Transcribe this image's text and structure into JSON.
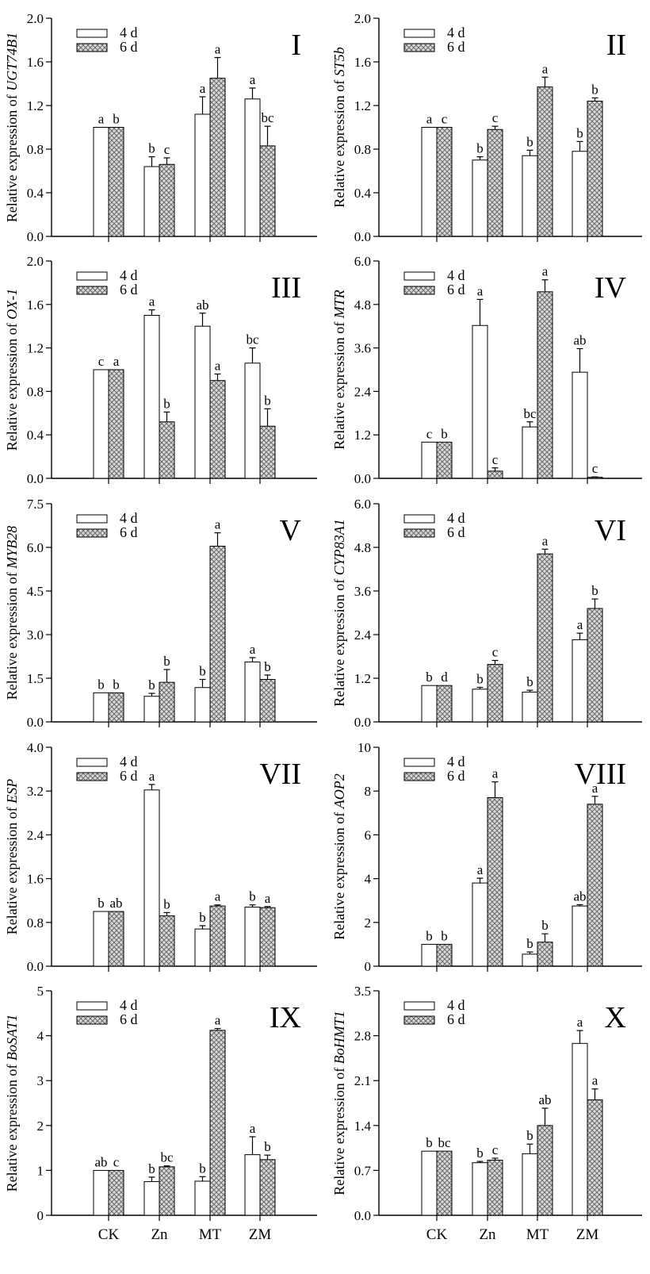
{
  "legend": [
    "4 d",
    "6 d"
  ],
  "colors": {
    "bar_4d": "#ffffff",
    "bar_6d_fg": "#6e6e6e",
    "bar_6d_bg": "#d9d9d9",
    "axis": "#000000"
  },
  "chart_data": [
    {
      "type": "bar",
      "panel": "I",
      "ylabel_prefix": "Relative expression of ",
      "gene": "UGT74B1",
      "categories": [
        "CK",
        "Zn",
        "MT",
        "ZM"
      ],
      "ylim": [
        0,
        2.0
      ],
      "yticks": [
        "0.0",
        "0.4",
        "0.8",
        "1.2",
        "1.6",
        "2.0"
      ],
      "series": [
        {
          "name": "4 d",
          "values": [
            1.0,
            0.64,
            1.12,
            1.26
          ],
          "errors": [
            0,
            0.09,
            0.16,
            0.1
          ],
          "letters": [
            "a",
            "b",
            "a",
            "a"
          ]
        },
        {
          "name": "6 d",
          "values": [
            1.0,
            0.66,
            1.45,
            0.83
          ],
          "errors": [
            0,
            0.06,
            0.19,
            0.18
          ],
          "letters": [
            "b",
            "c",
            "a",
            "bc"
          ]
        }
      ]
    },
    {
      "type": "bar",
      "panel": "II",
      "ylabel_prefix": "Relative expression of ",
      "gene": "ST5b",
      "categories": [
        "CK",
        "Zn",
        "MT",
        "ZM"
      ],
      "ylim": [
        0,
        2.0
      ],
      "yticks": [
        "0.0",
        "0.4",
        "0.8",
        "1.2",
        "1.6",
        "2.0"
      ],
      "series": [
        {
          "name": "4 d",
          "values": [
            1.0,
            0.7,
            0.74,
            0.78
          ],
          "errors": [
            0,
            0.03,
            0.05,
            0.09
          ],
          "letters": [
            "a",
            "b",
            "b",
            "b"
          ]
        },
        {
          "name": "6 d",
          "values": [
            1.0,
            0.98,
            1.37,
            1.24
          ],
          "errors": [
            0,
            0.03,
            0.09,
            0.03
          ],
          "letters": [
            "c",
            "c",
            "a",
            "b"
          ]
        }
      ]
    },
    {
      "type": "bar",
      "panel": "III",
      "ylabel_prefix": "Relative expression of ",
      "gene": "OX-1",
      "categories": [
        "CK",
        "Zn",
        "MT",
        "ZM"
      ],
      "ylim": [
        0,
        2.0
      ],
      "yticks": [
        "0.0",
        "0.4",
        "0.8",
        "1.2",
        "1.6",
        "2.0"
      ],
      "series": [
        {
          "name": "4 d",
          "values": [
            1.0,
            1.5,
            1.4,
            1.06
          ],
          "errors": [
            0,
            0.05,
            0.12,
            0.14
          ],
          "letters": [
            "c",
            "a",
            "ab",
            "bc"
          ]
        },
        {
          "name": "6 d",
          "values": [
            1.0,
            0.52,
            0.9,
            0.48
          ],
          "errors": [
            0,
            0.09,
            0.06,
            0.16
          ],
          "letters": [
            "a",
            "b",
            "a",
            "b"
          ]
        }
      ]
    },
    {
      "type": "bar",
      "panel": "IV",
      "ylabel_prefix": "Relative expression of ",
      "gene": "MTR",
      "categories": [
        "CK",
        "Zn",
        "MT",
        "ZM"
      ],
      "ylim": [
        0,
        6.0
      ],
      "yticks": [
        "0.0",
        "1.2",
        "2.4",
        "3.6",
        "4.8",
        "6.0"
      ],
      "series": [
        {
          "name": "4 d",
          "values": [
            1.0,
            4.22,
            1.42,
            2.93
          ],
          "errors": [
            0,
            0.72,
            0.14,
            0.65
          ],
          "letters": [
            "c",
            "a",
            "bc",
            "ab"
          ]
        },
        {
          "name": "6 d",
          "values": [
            1.0,
            0.2,
            5.15,
            0.03
          ],
          "errors": [
            0,
            0.09,
            0.33,
            0.01
          ],
          "letters": [
            "b",
            "c",
            "a",
            "c"
          ]
        }
      ]
    },
    {
      "type": "bar",
      "panel": "V",
      "ylabel_prefix": "Relative expression of ",
      "gene": "MYB28",
      "categories": [
        "CK",
        "Zn",
        "MT",
        "ZM"
      ],
      "ylim": [
        0,
        7.5
      ],
      "yticks": [
        "0.0",
        "1.5",
        "3.0",
        "4.5",
        "6.0",
        "7.5"
      ],
      "series": [
        {
          "name": "4 d",
          "values": [
            1.0,
            0.88,
            1.18,
            2.06
          ],
          "errors": [
            0,
            0.1,
            0.28,
            0.15
          ],
          "letters": [
            "b",
            "b",
            "b",
            "a"
          ]
        },
        {
          "name": "6 d",
          "values": [
            1.0,
            1.36,
            6.04,
            1.46
          ],
          "errors": [
            0,
            0.44,
            0.46,
            0.15
          ],
          "letters": [
            "b",
            "b",
            "a",
            "b"
          ]
        }
      ]
    },
    {
      "type": "bar",
      "panel": "VI",
      "ylabel_prefix": "Relative expression of ",
      "gene": "CYP83A1",
      "categories": [
        "CK",
        "Zn",
        "MT",
        "ZM"
      ],
      "ylim": [
        0,
        6.0
      ],
      "yticks": [
        "0.0",
        "1.2",
        "2.4",
        "3.6",
        "4.8",
        "6.0"
      ],
      "series": [
        {
          "name": "4 d",
          "values": [
            1.0,
            0.9,
            0.82,
            2.26
          ],
          "errors": [
            0,
            0.05,
            0.05,
            0.18
          ],
          "letters": [
            "b",
            "b",
            "b",
            "a"
          ]
        },
        {
          "name": "6 d",
          "values": [
            1.0,
            1.58,
            4.62,
            3.12
          ],
          "errors": [
            0,
            0.11,
            0.13,
            0.26
          ],
          "letters": [
            "d",
            "c",
            "a",
            "b"
          ]
        }
      ]
    },
    {
      "type": "bar",
      "panel": "VII",
      "ylabel_prefix": "Relative expression of ",
      "gene": "ESP",
      "categories": [
        "CK",
        "Zn",
        "MT",
        "ZM"
      ],
      "ylim": [
        0,
        4.0
      ],
      "yticks": [
        "0.0",
        "0.8",
        "1.6",
        "2.4",
        "3.2",
        "4.0"
      ],
      "series": [
        {
          "name": "4 d",
          "values": [
            1.0,
            3.22,
            0.68,
            1.08
          ],
          "errors": [
            0,
            0.1,
            0.06,
            0.04
          ],
          "letters": [
            "b",
            "a",
            "b",
            "b"
          ]
        },
        {
          "name": "6 d",
          "values": [
            1.0,
            0.92,
            1.1,
            1.07
          ],
          "errors": [
            0,
            0.06,
            0.02,
            0.02
          ],
          "letters": [
            "ab",
            "b",
            "a",
            "a"
          ]
        }
      ]
    },
    {
      "type": "bar",
      "panel": "VIII",
      "ylabel_prefix": "Relative expression of ",
      "gene": "AOP2",
      "categories": [
        "CK",
        "Zn",
        "MT",
        "ZM"
      ],
      "ylim": [
        0,
        10
      ],
      "yticks": [
        "0",
        "2",
        "4",
        "6",
        "8",
        "10"
      ],
      "series": [
        {
          "name": "4 d",
          "values": [
            1.0,
            3.8,
            0.55,
            2.75
          ],
          "errors": [
            0,
            0.22,
            0.1,
            0.06
          ],
          "letters": [
            "b",
            "a",
            "b",
            "ab"
          ]
        },
        {
          "name": "6 d",
          "values": [
            1.0,
            7.7,
            1.1,
            7.4
          ],
          "errors": [
            0,
            0.72,
            0.38,
            0.36
          ],
          "letters": [
            "b",
            "a",
            "b",
            "a"
          ]
        }
      ]
    },
    {
      "type": "bar",
      "panel": "IX",
      "ylabel_prefix": "Relative expression of ",
      "gene": "BoSAT1",
      "categories": [
        "CK",
        "Zn",
        "MT",
        "ZM"
      ],
      "ylim": [
        0,
        5
      ],
      "yticks": [
        "0",
        "1",
        "2",
        "3",
        "4",
        "5"
      ],
      "series": [
        {
          "name": "4 d",
          "values": [
            1.0,
            0.75,
            0.76,
            1.35
          ],
          "errors": [
            0,
            0.1,
            0.1,
            0.4
          ],
          "letters": [
            "ab",
            "b",
            "b",
            "a"
          ]
        },
        {
          "name": "6 d",
          "values": [
            1.0,
            1.08,
            4.12,
            1.24
          ],
          "errors": [
            0,
            0.02,
            0.04,
            0.1
          ],
          "letters": [
            "c",
            "bc",
            "a",
            "b"
          ]
        }
      ]
    },
    {
      "type": "bar",
      "panel": "X",
      "ylabel_prefix": "Relative expression of ",
      "gene": "BoHMT1",
      "categories": [
        "CK",
        "Zn",
        "MT",
        "ZM"
      ],
      "ylim": [
        0,
        3.5
      ],
      "yticks": [
        "0.0",
        "0.7",
        "1.4",
        "2.1",
        "2.8",
        "3.5"
      ],
      "series": [
        {
          "name": "4 d",
          "values": [
            1.0,
            0.82,
            0.96,
            2.68
          ],
          "errors": [
            0,
            0.02,
            0.15,
            0.2
          ],
          "letters": [
            "b",
            "b",
            "b",
            "a"
          ]
        },
        {
          "name": "6 d",
          "values": [
            1.0,
            0.86,
            1.4,
            1.8
          ],
          "errors": [
            0,
            0.03,
            0.27,
            0.17
          ],
          "letters": [
            "bc",
            "c",
            "ab",
            "a"
          ]
        }
      ]
    }
  ]
}
